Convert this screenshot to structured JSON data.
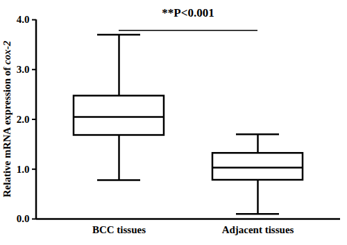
{
  "chart_data": {
    "type": "box",
    "y_label": "Relative mRNA expression of cox-2",
    "categories": [
      "BCC tissues",
      "Adjacent tissues"
    ],
    "boxes": [
      {
        "min": 0.78,
        "q1": 1.68,
        "median": 2.05,
        "q3": 2.47,
        "max": 3.7
      },
      {
        "min": 0.1,
        "q1": 0.78,
        "median": 1.03,
        "q3": 1.32,
        "max": 1.7
      }
    ],
    "annotations": [
      {
        "text": "**P<0.001"
      }
    ],
    "ylim": [
      0,
      4
    ],
    "yticks": [
      0,
      1,
      2,
      3,
      4
    ],
    "color": "#000000",
    "grid": false
  }
}
